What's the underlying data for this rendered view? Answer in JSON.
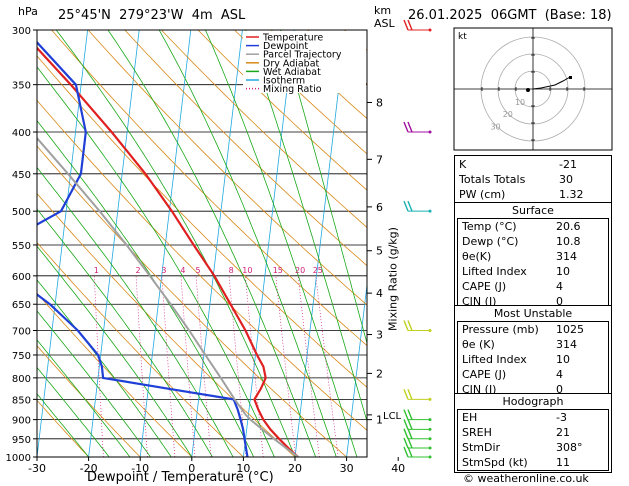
{
  "header": {
    "hpa_unit": "hPa",
    "location": "25°45'N  279°23'W  4m  ASL",
    "km_unit": "km",
    "asl_label": "ASL",
    "datetime": "26.01.2025  06GMT  (Base: 18)"
  },
  "chart_data": {
    "type": "line",
    "title": "",
    "xlabel": "Dewpoint / Temperature (°C)",
    "ylabel": "hPa",
    "right_label": "Mixing Ratio (g/kg)",
    "xlim": [
      -35,
      40
    ],
    "ylim": [
      1000,
      300
    ],
    "x_ticks": [
      -30,
      -20,
      -10,
      0,
      10,
      20,
      30,
      40
    ],
    "pressure_ticks": [
      300,
      350,
      400,
      450,
      500,
      550,
      600,
      650,
      700,
      750,
      800,
      850,
      900,
      950,
      1000
    ],
    "km_ticks": [
      {
        "label": "8",
        "p": 368
      },
      {
        "label": "7",
        "p": 432
      },
      {
        "label": "6",
        "p": 494
      },
      {
        "label": "5",
        "p": 559
      },
      {
        "label": "4",
        "p": 630
      },
      {
        "label": "3",
        "p": 708
      },
      {
        "label": "2",
        "p": 790
      },
      {
        "label": "1",
        "p": 900
      }
    ],
    "lcl": {
      "label": "LCL",
      "p": 888
    },
    "mixing_ratio_labels": [
      "1",
      "2",
      "3",
      "4",
      "5",
      "8",
      "10",
      "15",
      "20",
      "25"
    ],
    "mixing_ratio_values": [
      1,
      2,
      3,
      4,
      5,
      8,
      10,
      15,
      20,
      25
    ],
    "legend": [
      {
        "name": "Temperature",
        "color": "#e02020"
      },
      {
        "name": "Dewpoint",
        "color": "#1f3fd6"
      },
      {
        "name": "Parcel Trajectory",
        "color": "#a0a0a0"
      },
      {
        "name": "Dry Adiabat",
        "color": "#d98a1a"
      },
      {
        "name": "Wet Adiabat",
        "color": "#18a818"
      },
      {
        "name": "Isotherm",
        "color": "#20a8e0"
      },
      {
        "name": "Mixing Ratio",
        "color": "#d0207a"
      }
    ],
    "series": [
      {
        "name": "Temperature",
        "color": "#e02020",
        "p": [
          1000,
          975,
          950,
          925,
          900,
          875,
          850,
          825,
          800,
          775,
          750,
          700,
          650,
          600,
          550,
          500,
          450,
          400,
          350,
          300
        ],
        "t": [
          20.6,
          18.5,
          16.5,
          14.6,
          13.0,
          11.8,
          10.8,
          11.8,
          12.5,
          11.8,
          10.3,
          7.5,
          4.0,
          0.2,
          -4.5,
          -9.5,
          -15.5,
          -23.0,
          -32.0,
          -43.0
        ]
      },
      {
        "name": "Dewpoint",
        "color": "#1f3fd6",
        "p": [
          1000,
          975,
          950,
          925,
          900,
          875,
          850,
          825,
          800,
          775,
          750,
          700,
          650,
          600,
          550,
          500,
          450,
          400,
          350,
          300
        ],
        "t": [
          10.8,
          10.3,
          9.8,
          9.3,
          8.6,
          7.8,
          6.8,
          -6.0,
          -19.0,
          -19.5,
          -20.5,
          -25.0,
          -31.0,
          -39.0,
          -42.0,
          -31.0,
          -28.0,
          -28.0,
          -31.0,
          -42.0
        ]
      },
      {
        "name": "Parcel Trajectory",
        "color": "#a0a0a0",
        "p": [
          1000,
          950,
          900,
          888,
          850,
          800,
          750,
          700,
          650,
          600,
          550,
          500,
          450,
          400,
          350,
          300
        ],
        "t": [
          20.6,
          15.5,
          10.5,
          9.5,
          7.0,
          3.8,
          0.3,
          -3.4,
          -7.6,
          -12.3,
          -17.5,
          -23.5,
          -30.5,
          -38.5,
          -48.0,
          -59.0
        ]
      }
    ],
    "wind_barbs": [
      {
        "p": 300,
        "color": "#e02020"
      },
      {
        "p": 400,
        "color": "#a010a0"
      },
      {
        "p": 500,
        "color": "#18b0b0"
      },
      {
        "p": 700,
        "color": "#c0d020"
      },
      {
        "p": 850,
        "color": "#c0d020"
      },
      {
        "p": 900,
        "color": "#30c030"
      },
      {
        "p": 925,
        "color": "#30c030"
      },
      {
        "p": 950,
        "color": "#30c030"
      },
      {
        "p": 975,
        "color": "#30c030"
      },
      {
        "p": 1000,
        "color": "#30c030"
      }
    ]
  },
  "hodograph": {
    "unit_label": "kt",
    "ring_labels": [
      "10",
      "20",
      "30"
    ]
  },
  "indices": {
    "rows": [
      {
        "label": "K",
        "value": "-21"
      },
      {
        "label": "Totals Totals",
        "value": "30"
      },
      {
        "label": "PW (cm)",
        "value": "1.32"
      }
    ]
  },
  "surface": {
    "title": "Surface",
    "rows": [
      {
        "label": "Temp (°C)",
        "value": "20.6"
      },
      {
        "label": "Dewp (°C)",
        "value": "10.8"
      },
      {
        "label": "θe(K)",
        "value": "314"
      },
      {
        "label": "Lifted Index",
        "value": "10"
      },
      {
        "label": "CAPE (J)",
        "value": "4"
      },
      {
        "label": "CIN (J)",
        "value": "0"
      }
    ]
  },
  "most_unstable": {
    "title": "Most Unstable",
    "rows": [
      {
        "label": "Pressure (mb)",
        "value": "1025"
      },
      {
        "label": "θe (K)",
        "value": "314"
      },
      {
        "label": "Lifted Index",
        "value": "10"
      },
      {
        "label": "CAPE (J)",
        "value": "4"
      },
      {
        "label": "CIN (J)",
        "value": "0"
      }
    ]
  },
  "hodograph_table": {
    "title": "Hodograph",
    "rows": [
      {
        "label": "EH",
        "value": "-3"
      },
      {
        "label": "SREH",
        "value": "21"
      },
      {
        "label": "StmDir",
        "value": "308°"
      },
      {
        "label": "StmSpd (kt)",
        "value": "11"
      }
    ]
  },
  "footer": {
    "copyright": "© weatheronline.co.uk"
  }
}
